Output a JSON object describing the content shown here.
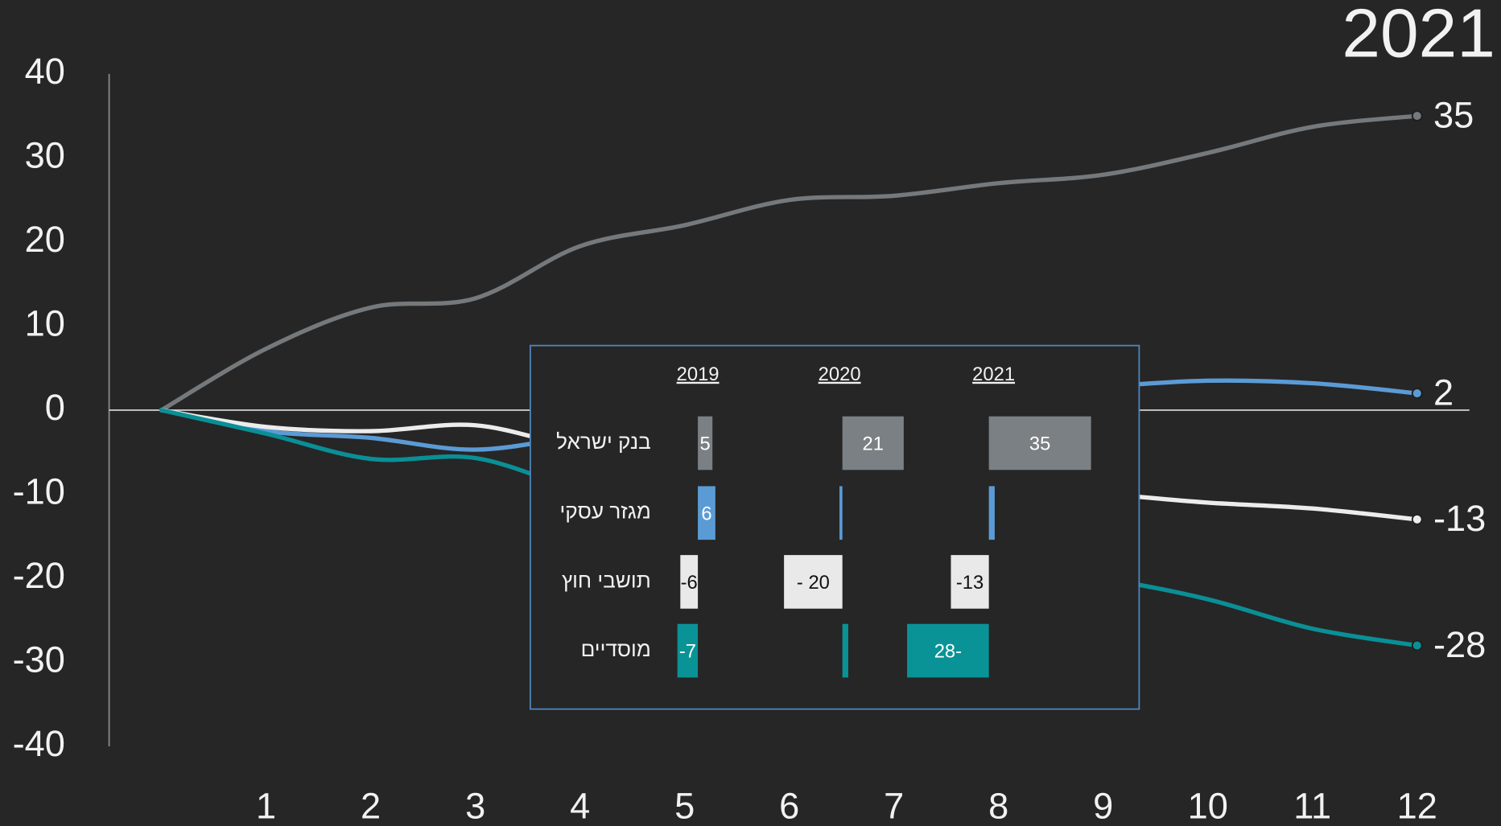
{
  "chart_data": [
    {
      "type": "line",
      "title": "2021",
      "x": [
        0,
        1,
        2,
        3,
        4,
        5,
        6,
        7,
        8,
        9,
        10,
        11,
        12
      ],
      "xlim": [
        -0.5,
        12.5
      ],
      "xticks": [
        1,
        2,
        3,
        4,
        5,
        6,
        7,
        8,
        9,
        10,
        11,
        12
      ],
      "ylim": [
        -40,
        40
      ],
      "yticks": [
        -40,
        -30,
        -20,
        -10,
        0,
        10,
        20,
        30,
        40
      ],
      "series": [
        {
          "color": "#75797c",
          "values": [
            0,
            7.3,
            12.2,
            13.3,
            19.5,
            22,
            25,
            25.5,
            27,
            28,
            30.6,
            33.7,
            35
          ]
        },
        {
          "color": "#5b9bd5",
          "values": [
            0,
            -2.5,
            -3.3,
            -4.7,
            -3,
            -1,
            0,
            1,
            2,
            2.8,
            3.5,
            3.2,
            2
          ]
        },
        {
          "color": "#ececec",
          "values": [
            0,
            -2,
            -2.5,
            -1.8,
            -4.5,
            -6,
            -7.5,
            -8.5,
            -9.5,
            -10,
            -11,
            -11.7,
            -13
          ]
        },
        {
          "color": "#0a8f96",
          "values": [
            0,
            -2.8,
            -5.8,
            -5.7,
            -9.5,
            -12,
            -14,
            -16,
            -18,
            -20,
            -22.5,
            -26,
            -28
          ]
        }
      ]
    },
    {
      "type": "bar-table",
      "categories": [
        "2019",
        "2020",
        "2021"
      ],
      "series": [
        {
          "name": "בנק ישראל",
          "color": "#7b8084",
          "values": [
            5,
            21,
            35
          ],
          "value_labels": [
            "5",
            "21",
            "35"
          ]
        },
        {
          "name": "מגזר עסקי",
          "color": "#5b9bd5",
          "values": [
            6,
            -1,
            2
          ],
          "value_labels": [
            "6",
            null,
            null
          ]
        },
        {
          "name": "תושבי חוץ",
          "color": "#e9e9e9",
          "values": [
            -6,
            -20,
            -13
          ],
          "value_labels": [
            "-6",
            "- 20",
            "-13"
          ]
        },
        {
          "name": "מוסדיים",
          "color": "#0a9396",
          "values": [
            -7,
            2,
            -28
          ],
          "value_labels": [
            "-7",
            null,
            "28-"
          ]
        }
      ]
    }
  ]
}
